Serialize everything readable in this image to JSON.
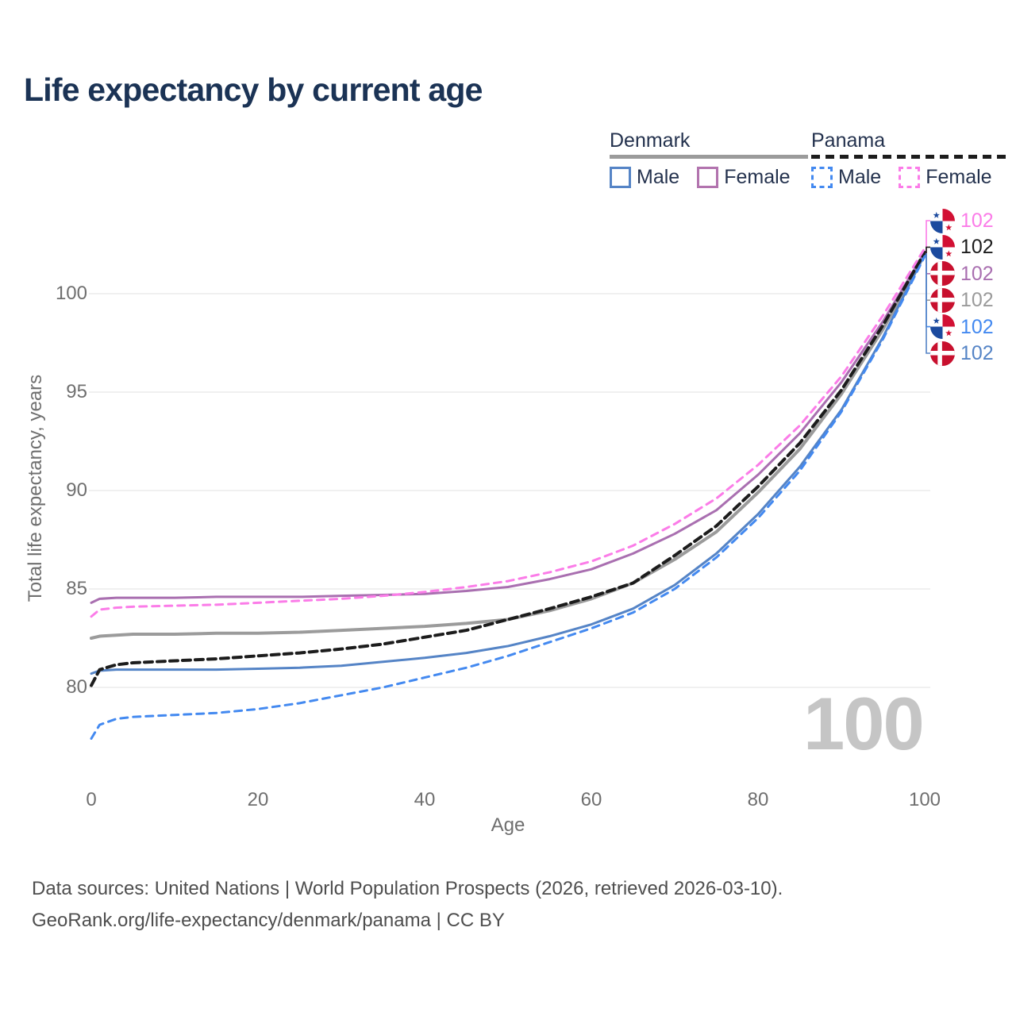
{
  "page": {
    "title": "Life expectancy by current age"
  },
  "legend": {
    "groups": [
      {
        "country": "Denmark",
        "line_style": "solid",
        "underline_color": "#9b9b9b",
        "items": [
          {
            "label": "Male",
            "color": "#5584c6"
          },
          {
            "label": "Female",
            "color": "#b273ae"
          }
        ]
      },
      {
        "country": "Panama",
        "line_style": "dashed",
        "underline_color": "#1c1c1c",
        "items": [
          {
            "label": "Male",
            "color": "#4389f0"
          },
          {
            "label": "Female",
            "color": "#fb7ce8"
          }
        ]
      }
    ]
  },
  "chart_data": {
    "type": "line",
    "title": "Life expectancy by current age",
    "xlabel": "Age",
    "ylabel": "Total life expectancy, years",
    "xlim": [
      0,
      100
    ],
    "ylim": [
      76.5,
      103
    ],
    "xticks": [
      0,
      20,
      40,
      60,
      80,
      100
    ],
    "yticks": [
      80,
      85,
      90,
      95,
      100
    ],
    "grid": "horizontal-only",
    "legend_position": "top-right",
    "x_ages": [
      0,
      1,
      3,
      5,
      10,
      15,
      20,
      25,
      30,
      35,
      40,
      45,
      50,
      55,
      60,
      65,
      70,
      75,
      80,
      85,
      90,
      95,
      100
    ],
    "series": [
      {
        "id": "denmark-both",
        "name": "Denmark",
        "country": "Denmark",
        "sex": "both",
        "color": "#9b9b9b",
        "dashed": false,
        "width": 4,
        "end_label": "102",
        "values": [
          82.5,
          82.6,
          82.65,
          82.7,
          82.7,
          82.75,
          82.75,
          82.8,
          82.9,
          83.0,
          83.1,
          83.25,
          83.45,
          83.9,
          84.5,
          85.3,
          86.5,
          87.9,
          89.9,
          92.1,
          94.9,
          98.2,
          102.0
        ]
      },
      {
        "id": "denmark-female",
        "name": "Denmark Female",
        "country": "Denmark",
        "sex": "female",
        "color": "#a96fb0",
        "dashed": false,
        "width": 3,
        "end_label": "102",
        "values": [
          84.3,
          84.5,
          84.55,
          84.55,
          84.55,
          84.6,
          84.6,
          84.6,
          84.65,
          84.7,
          84.75,
          84.9,
          85.1,
          85.5,
          86.0,
          86.8,
          87.8,
          89.0,
          90.8,
          92.9,
          95.5,
          98.6,
          102.1
        ]
      },
      {
        "id": "denmark-male",
        "name": "Denmark Male",
        "country": "Denmark",
        "sex": "male",
        "color": "#5584c6",
        "dashed": false,
        "width": 3,
        "end_label": "102",
        "values": [
          80.7,
          80.85,
          80.9,
          80.9,
          80.9,
          80.9,
          80.95,
          81.0,
          81.1,
          81.3,
          81.5,
          81.75,
          82.1,
          82.6,
          83.2,
          84.0,
          85.2,
          86.8,
          88.8,
          91.2,
          94.1,
          97.8,
          102.0
        ]
      },
      {
        "id": "panama-both",
        "name": "Panama",
        "country": "Panama",
        "sex": "both",
        "color": "#1c1c1c",
        "dashed": true,
        "dash": "10 6",
        "width": 4,
        "end_label": "102",
        "values": [
          80.1,
          80.9,
          81.15,
          81.25,
          81.35,
          81.45,
          81.6,
          81.75,
          81.95,
          82.2,
          82.55,
          82.9,
          83.45,
          84.0,
          84.6,
          85.3,
          86.7,
          88.2,
          90.2,
          92.4,
          95.1,
          98.4,
          102.1
        ]
      },
      {
        "id": "panama-female",
        "name": "Panama Female",
        "country": "Panama",
        "sex": "female",
        "color": "#fb7ce8",
        "dashed": true,
        "dash": "9 7",
        "width": 3,
        "end_label": "102",
        "values": [
          83.6,
          83.95,
          84.05,
          84.1,
          84.15,
          84.2,
          84.3,
          84.4,
          84.5,
          84.65,
          84.85,
          85.1,
          85.4,
          85.85,
          86.4,
          87.2,
          88.3,
          89.6,
          91.3,
          93.3,
          95.8,
          98.9,
          102.3
        ]
      },
      {
        "id": "panama-male",
        "name": "Panama Male",
        "country": "Panama",
        "sex": "male",
        "color": "#4389f0",
        "dashed": true,
        "dash": "9 7",
        "width": 3,
        "end_label": "102",
        "values": [
          77.4,
          78.1,
          78.4,
          78.5,
          78.6,
          78.7,
          78.9,
          79.2,
          79.6,
          80.0,
          80.5,
          81.0,
          81.6,
          82.3,
          83.0,
          83.8,
          85.0,
          86.6,
          88.6,
          91.0,
          94.0,
          97.7,
          101.9
        ]
      }
    ]
  },
  "right_labels": [
    {
      "flag": "panama",
      "series": "panama-female",
      "value": "102",
      "color": "#fb7ce8"
    },
    {
      "flag": "panama",
      "series": "panama-both",
      "value": "102",
      "color": "#1c1c1c"
    },
    {
      "flag": "denmark",
      "series": "denmark-female",
      "value": "102",
      "color": "#a96fb0"
    },
    {
      "flag": "denmark",
      "series": "denmark-both",
      "value": "102",
      "color": "#9b9b9b"
    },
    {
      "flag": "panama",
      "series": "panama-male",
      "value": "102",
      "color": "#4389f0"
    },
    {
      "flag": "denmark",
      "series": "denmark-male",
      "value": "102",
      "color": "#5584c6"
    }
  ],
  "watermark": "100",
  "flag_colors": {
    "denmark_red": "#c8102e",
    "panama_red": "#d21034",
    "panama_blue": "#1b4a9e"
  },
  "footer": {
    "line1": "Data sources: United Nations | World Population Prospects (2026, retrieved 2026-03-10).",
    "line2": "GeoRank.org/life-expectancy/denmark/panama | CC BY"
  }
}
